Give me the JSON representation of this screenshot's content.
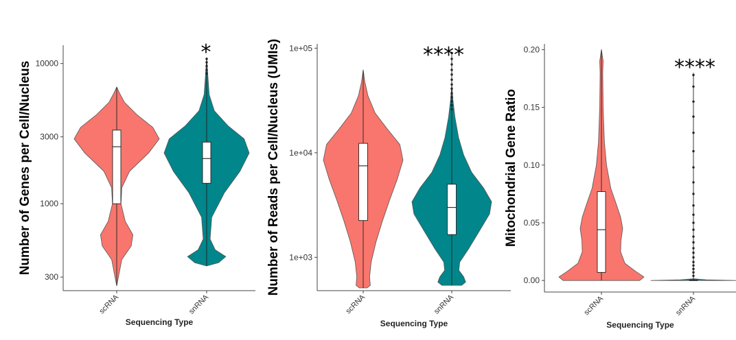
{
  "chart_data": [
    {
      "type": "violin",
      "xlabel": "Sequencing Type",
      "ylabel": "Number of Genes per Cell/Nucleus",
      "y_scale": "log",
      "ylim": [
        240,
        13500
      ],
      "y_ticks": [
        300,
        1000,
        3000,
        10000
      ],
      "y_tick_labels": [
        "300",
        "1000",
        "3000",
        "10000"
      ],
      "categories": [
        "scRNA",
        "snRNA"
      ],
      "significance": "*",
      "series": [
        {
          "name": "scRNA",
          "color": "#f8766d",
          "min": 260,
          "max": 6800,
          "q1": 1000,
          "median": 2550,
          "q3": 3350,
          "profile": [
            [
              260,
              0.0
            ],
            [
              300,
              0.04
            ],
            [
              400,
              0.12
            ],
            [
              500,
              0.34
            ],
            [
              600,
              0.38
            ],
            [
              750,
              0.2
            ],
            [
              1000,
              0.1
            ],
            [
              1300,
              0.12
            ],
            [
              1700,
              0.3
            ],
            [
              2300,
              0.75
            ],
            [
              2900,
              1.0
            ],
            [
              3500,
              0.85
            ],
            [
              4300,
              0.48
            ],
            [
              5300,
              0.18
            ],
            [
              6200,
              0.06
            ],
            [
              6800,
              0.0
            ]
          ],
          "outliers": []
        },
        {
          "name": "snRNA",
          "color": "#00868b",
          "min": 360,
          "max": 11000,
          "q1": 1400,
          "median": 2100,
          "q3": 2750,
          "profile": [
            [
              360,
              0.0
            ],
            [
              380,
              0.28
            ],
            [
              420,
              0.45
            ],
            [
              470,
              0.2
            ],
            [
              560,
              0.08
            ],
            [
              800,
              0.12
            ],
            [
              1200,
              0.42
            ],
            [
              1700,
              0.78
            ],
            [
              2300,
              1.0
            ],
            [
              2900,
              0.88
            ],
            [
              3600,
              0.5
            ],
            [
              4600,
              0.18
            ],
            [
              6000,
              0.06
            ],
            [
              8000,
              0.03
            ],
            [
              11000,
              0.0
            ]
          ],
          "outliers": [
            8500,
            9000,
            9600,
            10200,
            10800
          ]
        }
      ]
    },
    {
      "type": "violin",
      "xlabel": "Sequencing Type",
      "ylabel": "Number of Reads per Cell/Nucleus (UMIs)",
      "y_scale": "log",
      "ylim": [
        480,
        110000
      ],
      "y_ticks": [
        1000,
        10000,
        100000
      ],
      "y_tick_labels": [
        "1e+03",
        "1e+04",
        "1e+05"
      ],
      "categories": [
        "scRNA",
        "snRNA"
      ],
      "significance": "****",
      "series": [
        {
          "name": "scRNA",
          "color": "#f8766d",
          "min": 510,
          "max": 62000,
          "q1": 2250,
          "median": 7500,
          "q3": 12300,
          "profile": [
            [
              510,
              0.1
            ],
            [
              540,
              0.18
            ],
            [
              650,
              0.16
            ],
            [
              900,
              0.2
            ],
            [
              1400,
              0.32
            ],
            [
              2200,
              0.48
            ],
            [
              3500,
              0.66
            ],
            [
              5500,
              0.85
            ],
            [
              8500,
              1.0
            ],
            [
              12000,
              0.92
            ],
            [
              17000,
              0.6
            ],
            [
              24000,
              0.3
            ],
            [
              35000,
              0.12
            ],
            [
              48000,
              0.04
            ],
            [
              62000,
              0.0
            ]
          ],
          "outliers": []
        },
        {
          "name": "snRNA",
          "color": "#00868b",
          "min": 540,
          "max": 92000,
          "q1": 1650,
          "median": 3000,
          "q3": 5000,
          "profile": [
            [
              540,
              0.25
            ],
            [
              580,
              0.35
            ],
            [
              650,
              0.3
            ],
            [
              750,
              0.18
            ],
            [
              900,
              0.2
            ],
            [
              1200,
              0.42
            ],
            [
              1800,
              0.7
            ],
            [
              2600,
              0.95
            ],
            [
              3400,
              1.0
            ],
            [
              4600,
              0.8
            ],
            [
              6500,
              0.5
            ],
            [
              9500,
              0.3
            ],
            [
              14000,
              0.17
            ],
            [
              22000,
              0.08
            ],
            [
              32000,
              0.03
            ],
            [
              45000,
              0.0
            ]
          ],
          "outliers": [
            26000,
            28500,
            31000,
            34000,
            37000,
            41000,
            45000,
            50000,
            56000,
            62000,
            70000,
            79000,
            90000
          ]
        }
      ]
    },
    {
      "type": "violin",
      "xlabel": "Sequencing Type",
      "ylabel": "Mitochondrial Gene Ratio",
      "y_scale": "linear",
      "ylim": [
        -0.01,
        0.205
      ],
      "y_ticks": [
        0.0,
        0.05,
        0.1,
        0.15,
        0.2
      ],
      "y_tick_labels": [
        "0.00",
        "0.05",
        "0.10",
        "0.15",
        "0.20"
      ],
      "categories": [
        "scRNA",
        "snRNA"
      ],
      "significance": "****",
      "series": [
        {
          "name": "scRNA",
          "color": "#f8766d",
          "min": 0.0,
          "max": 0.2,
          "q1": 0.007,
          "median": 0.044,
          "q3": 0.077,
          "profile": [
            [
              0.0,
              0.9
            ],
            [
              0.003,
              1.0
            ],
            [
              0.008,
              0.8
            ],
            [
              0.015,
              0.55
            ],
            [
              0.025,
              0.45
            ],
            [
              0.035,
              0.46
            ],
            [
              0.045,
              0.5
            ],
            [
              0.055,
              0.45
            ],
            [
              0.065,
              0.36
            ],
            [
              0.08,
              0.22
            ],
            [
              0.1,
              0.12
            ],
            [
              0.12,
              0.07
            ],
            [
              0.15,
              0.04
            ],
            [
              0.18,
              0.03
            ],
            [
              0.19,
              0.04
            ],
            [
              0.2,
              0.0
            ]
          ],
          "outliers": []
        },
        {
          "name": "snRNA",
          "color": "#00868b",
          "min": 0.0,
          "max": 0.18,
          "q1": 0.0,
          "median": 0.0,
          "q3": 0.0005,
          "profile": [
            [
              0.0,
              1.0
            ],
            [
              0.0006,
              0.3
            ],
            [
              0.0015,
              0.0
            ]
          ],
          "outliers": [
            0.004,
            0.007,
            0.01,
            0.013,
            0.016,
            0.02,
            0.024,
            0.028,
            0.033,
            0.038,
            0.044,
            0.05,
            0.057,
            0.065,
            0.075,
            0.085,
            0.098,
            0.112,
            0.128,
            0.142,
            0.155,
            0.168,
            0.178
          ]
        }
      ]
    }
  ]
}
